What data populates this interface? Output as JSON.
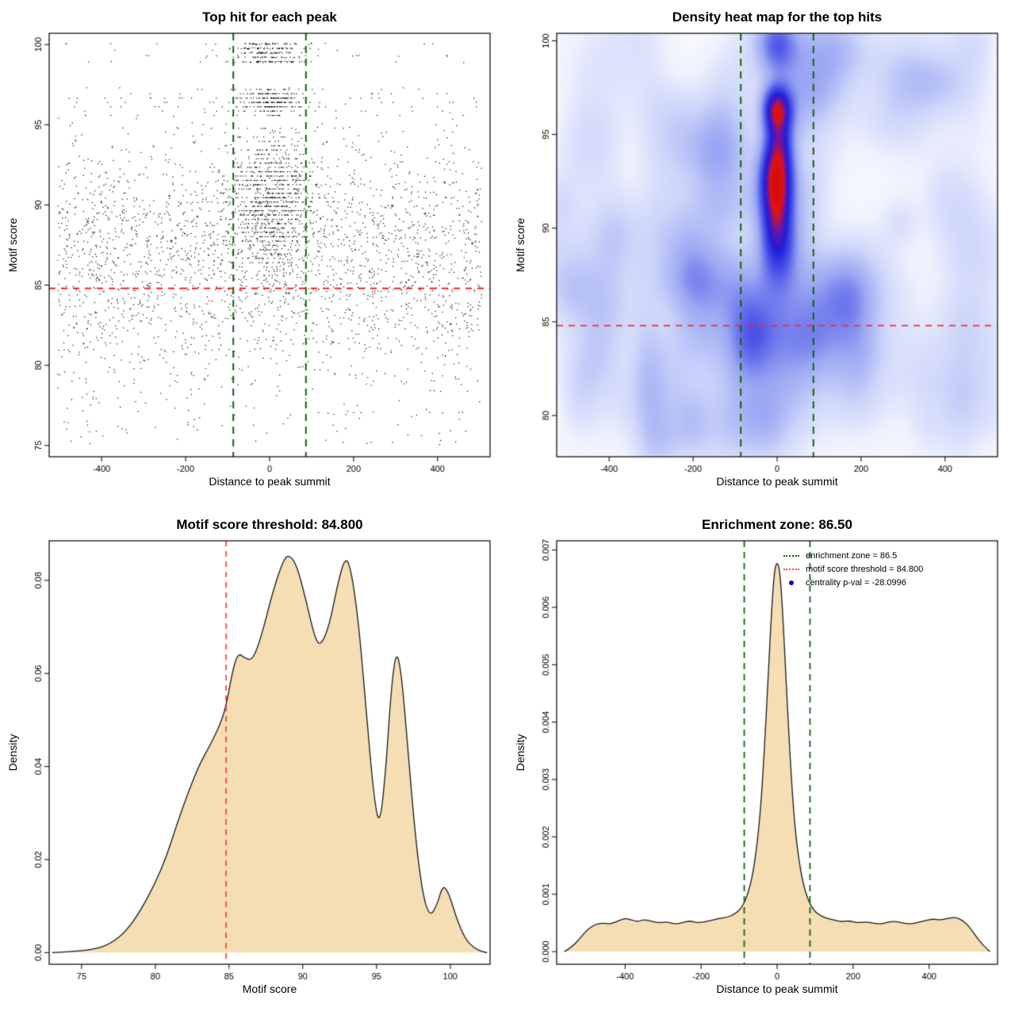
{
  "colors": {
    "density_fill": "#F5DEB3",
    "density_stroke": "#1a1a1a",
    "point_color": "#000000",
    "threshold_red": "#FF0000",
    "zone_green": "#0E640E",
    "legend_blue": "#0000CC"
  },
  "chart_data": [
    {
      "type": "scatter",
      "title": "Top hit for each peak",
      "xlabel": "Distance to peak summit",
      "ylabel": "Motif score",
      "xlim": [
        -525,
        525
      ],
      "ylim": [
        74.3,
        100.7
      ],
      "xticks": {
        "values": [
          -400,
          -200,
          0,
          200,
          400
        ],
        "labels": [
          "-400",
          "-200",
          "0",
          "200",
          "400"
        ]
      },
      "yticks": {
        "values": [
          75,
          80,
          85,
          90,
          95,
          100
        ],
        "labels": [
          "75",
          "80",
          "85",
          "90",
          "95",
          "100"
        ]
      },
      "hline": {
        "y": 84.8,
        "color": "#FF0000",
        "width": 1.8,
        "dash": [
          8,
          7
        ]
      },
      "vlines": {
        "x": [
          -86.5,
          86.5
        ],
        "color": "#0E640E",
        "width": 2,
        "dash": [
          9,
          7
        ]
      },
      "point_size": 1.2,
      "model": {
        "seed": 1337,
        "components": [
          {
            "n": 2500,
            "x": [
              "uniform",
              -505,
              505
            ],
            "y": [
              "normal",
              86.6,
              3.6
            ],
            "yclip": [
              75.2,
              97.3
            ]
          },
          {
            "n": 90,
            "x": [
              "uniform",
              -505,
              505
            ],
            "y": [
              "uniform",
              75.0,
              79.5
            ]
          },
          {
            "n": 850,
            "x": [
              "normal",
              0,
              52
            ],
            "y": [
              "normal",
              90.2,
              2.1
            ],
            "yclip": [
              84.3,
              94.9
            ],
            "quant": 0.27
          },
          {
            "n": 240,
            "x": [
              "normal",
              0,
              38
            ],
            "y": [
              "normal",
              96.45,
              0.42
            ],
            "yclip": [
              95.7,
              97.25
            ],
            "quant": 0.27
          },
          {
            "n": 210,
            "x": [
              "normal",
              0,
              42
            ],
            "y": [
              "bands",
              [
                98.92,
                99.2,
                99.48,
                99.76,
                100.04
              ],
              0.04
            ]
          },
          {
            "n": 36,
            "x": [
              "uniform",
              -495,
              495
            ],
            "y": [
              "bands",
              [
                98.92,
                99.3,
                99.68,
                100.04
              ],
              0.04
            ]
          },
          {
            "n": 90,
            "x": [
              "uniform",
              -495,
              495
            ],
            "y": [
              "normal",
              96.3,
              0.5
            ],
            "yclip": [
              95.5,
              97.2
            ],
            "quant": 0.27
          }
        ]
      }
    },
    {
      "type": "heatmap",
      "title": "Density heat map for the top hits",
      "xlabel": "Distance to peak summit",
      "ylabel": "Motif score",
      "xlim": [
        -525,
        525
      ],
      "ylim": [
        77.8,
        100.4
      ],
      "xticks": {
        "values": [
          -400,
          -200,
          0,
          200,
          400
        ],
        "labels": [
          "-400",
          "-200",
          "0",
          "200",
          "400"
        ]
      },
      "yticks": {
        "values": [
          80,
          85,
          90,
          95,
          100
        ],
        "labels": [
          "80",
          "85",
          "90",
          "95",
          "100"
        ]
      },
      "hline": {
        "y": 84.8,
        "color": "#FF2A2A",
        "width": 1.6,
        "dash": [
          8,
          7
        ]
      },
      "vlines": {
        "x": [
          -86.5,
          86.5
        ],
        "color": "#0E640E",
        "width": 2,
        "dash": [
          9,
          7
        ]
      },
      "kde": {
        "grid": [
          224,
          152
        ],
        "gamma": 0.5,
        "colormap": [
          [
            0,
            "#ffffff"
          ],
          [
            0.2,
            "#eef1fd"
          ],
          [
            0.36,
            "#ced6fa"
          ],
          [
            0.52,
            "#9ba7f2"
          ],
          [
            0.66,
            "#4d55e8"
          ],
          [
            0.78,
            "#1d1dd8"
          ],
          [
            0.86,
            "#6a14aa"
          ],
          [
            0.92,
            "#e01212"
          ],
          [
            1,
            "#d40b0b"
          ]
        ],
        "blobs": [
          {
            "x": 0,
            "y": 96.35,
            "sx": 23,
            "sy": 0.85,
            "w": 1.0
          },
          {
            "x": 0,
            "y": 92.9,
            "sx": 26,
            "sy": 1.35,
            "w": 1.05
          },
          {
            "x": 0,
            "y": 90.8,
            "sx": 25,
            "sy": 1.4,
            "w": 0.5
          },
          {
            "x": 2,
            "y": 89.2,
            "sx": 29,
            "sy": 1.5,
            "w": 0.52
          },
          {
            "x": 0,
            "y": 99.8,
            "sx": 33,
            "sy": 1.15,
            "w": 0.5
          },
          {
            "x": 6,
            "y": 94.7,
            "sx": 21,
            "sy": 0.95,
            "w": 0.4
          },
          {
            "x": 0,
            "y": 86.2,
            "sx": 60,
            "sy": 2.3,
            "w": 0.2
          },
          {
            "x": -30,
            "y": 83.6,
            "sx": 140,
            "sy": 3.0,
            "w": 0.11
          },
          {
            "x": 120,
            "y": 84.0,
            "sx": 120,
            "sy": 3.0,
            "w": 0.1
          }
        ],
        "background_blobs": {
          "seed": 77,
          "n": 120,
          "x": [
            -530,
            530
          ],
          "y": [
            78.2,
            100.8
          ],
          "sx": [
            26,
            64
          ],
          "sy": [
            0.9,
            2.4
          ],
          "w": [
            0.035,
            0.125
          ]
        }
      }
    },
    {
      "type": "density",
      "title": "Motif score threshold: 84.800",
      "xlabel": "Motif score",
      "ylabel": "Density",
      "xlim": [
        72.8,
        102.7
      ],
      "ylim": [
        -0.0025,
        0.0885
      ],
      "xticks": {
        "values": [
          75,
          80,
          85,
          90,
          95,
          100
        ],
        "labels": [
          "75",
          "80",
          "85",
          "90",
          "95",
          "100"
        ]
      },
      "yticks": {
        "values": [
          0,
          0.02,
          0.04,
          0.06,
          0.08
        ],
        "labels": [
          "0.00",
          "0.02",
          "0.04",
          "0.06",
          "0.08"
        ]
      },
      "vline": {
        "x": 84.8,
        "color": "#FF3030",
        "width": 1.6,
        "dash": [
          7,
          6
        ]
      },
      "fill": "#F5DEB3",
      "curve": [
        [
          73,
          0
        ],
        [
          74.5,
          0.0002
        ],
        [
          76,
          0.0008
        ],
        [
          77,
          0.002
        ],
        [
          78,
          0.0045
        ],
        [
          79,
          0.009
        ],
        [
          80,
          0.015
        ],
        [
          80.8,
          0.021
        ],
        [
          81.5,
          0.028
        ],
        [
          82.3,
          0.035
        ],
        [
          83,
          0.0405
        ],
        [
          83.7,
          0.0445
        ],
        [
          84.4,
          0.049
        ],
        [
          84.8,
          0.053
        ],
        [
          85.2,
          0.06
        ],
        [
          85.6,
          0.0645
        ],
        [
          86.1,
          0.0632
        ],
        [
          86.6,
          0.0628
        ],
        [
          87.2,
          0.068
        ],
        [
          88,
          0.078
        ],
        [
          88.7,
          0.0845
        ],
        [
          89.1,
          0.0855
        ],
        [
          89.6,
          0.0832
        ],
        [
          90.2,
          0.076
        ],
        [
          90.8,
          0.0678
        ],
        [
          91.2,
          0.0658
        ],
        [
          91.8,
          0.0702
        ],
        [
          92.4,
          0.0798
        ],
        [
          92.9,
          0.0852
        ],
        [
          93.3,
          0.082
        ],
        [
          93.8,
          0.0705
        ],
        [
          94.3,
          0.052
        ],
        [
          94.8,
          0.034
        ],
        [
          95.2,
          0.0268
        ],
        [
          95.6,
          0.038
        ],
        [
          96,
          0.057
        ],
        [
          96.35,
          0.0652
        ],
        [
          96.7,
          0.0598
        ],
        [
          97.1,
          0.0448
        ],
        [
          97.6,
          0.026
        ],
        [
          98.1,
          0.013
        ],
        [
          98.6,
          0.0076
        ],
        [
          99.1,
          0.0102
        ],
        [
          99.5,
          0.0146
        ],
        [
          99.9,
          0.0128
        ],
        [
          100.4,
          0.0076
        ],
        [
          101,
          0.003
        ],
        [
          101.6,
          0.001
        ],
        [
          102.2,
          0.0002
        ],
        [
          102.5,
          0
        ]
      ]
    },
    {
      "type": "density",
      "title": "Enrichment zone: 86.50",
      "xlabel": "Distance to peak summit",
      "ylabel": "Density",
      "xlim": [
        -580,
        580
      ],
      "ylim": [
        -0.00022,
        0.00716
      ],
      "xticks": {
        "values": [
          -400,
          -200,
          0,
          200,
          400
        ],
        "labels": [
          "-400",
          "-200",
          "0",
          "200",
          "400"
        ]
      },
      "yticks": {
        "values": [
          0,
          0.001,
          0.002,
          0.003,
          0.004,
          0.005,
          0.006,
          0.007
        ],
        "labels": [
          "0.000",
          "0.001",
          "0.002",
          "0.003",
          "0.004",
          "0.005",
          "0.006",
          "0.007"
        ]
      },
      "vlines": {
        "x": [
          -86.5,
          86.5
        ],
        "color": "#0E640E",
        "width": 1.8,
        "dash": [
          8,
          6
        ]
      },
      "fill": "#F5DEB3",
      "curve": [
        [
          -560,
          0
        ],
        [
          -540,
          8e-05
        ],
        [
          -520,
          0.00022
        ],
        [
          -500,
          0.00038
        ],
        [
          -480,
          0.00047
        ],
        [
          -460,
          0.0005
        ],
        [
          -440,
          0.00048
        ],
        [
          -420,
          0.00053
        ],
        [
          -400,
          0.00058
        ],
        [
          -385,
          0.00056
        ],
        [
          -368,
          0.00052
        ],
        [
          -350,
          0.00056
        ],
        [
          -330,
          0.00053
        ],
        [
          -310,
          0.0005
        ],
        [
          -290,
          0.00052
        ],
        [
          -270,
          0.00048
        ],
        [
          -250,
          0.0005
        ],
        [
          -230,
          0.00054
        ],
        [
          -210,
          0.0005
        ],
        [
          -190,
          0.00052
        ],
        [
          -170,
          0.00055
        ],
        [
          -150,
          0.00058
        ],
        [
          -130,
          0.0006
        ],
        [
          -110,
          0.00066
        ],
        [
          -95,
          0.00075
        ],
        [
          -80,
          0.00094
        ],
        [
          -65,
          0.0013
        ],
        [
          -52,
          0.0019
        ],
        [
          -42,
          0.0026
        ],
        [
          -32,
          0.0037
        ],
        [
          -22,
          0.005
        ],
        [
          -14,
          0.006
        ],
        [
          -7,
          0.00665
        ],
        [
          0,
          0.0068
        ],
        [
          7,
          0.00665
        ],
        [
          14,
          0.006
        ],
        [
          22,
          0.00495
        ],
        [
          32,
          0.00365
        ],
        [
          42,
          0.00255
        ],
        [
          52,
          0.00185
        ],
        [
          65,
          0.00128
        ],
        [
          80,
          0.00092
        ],
        [
          95,
          0.00073
        ],
        [
          110,
          0.00064
        ],
        [
          130,
          0.00058
        ],
        [
          150,
          0.00055
        ],
        [
          170,
          0.00052
        ],
        [
          190,
          0.00054
        ],
        [
          210,
          0.0005
        ],
        [
          230,
          0.00052
        ],
        [
          250,
          0.0005
        ],
        [
          270,
          0.00048
        ],
        [
          290,
          0.00051
        ],
        [
          310,
          0.00053
        ],
        [
          330,
          0.0005
        ],
        [
          350,
          0.00048
        ],
        [
          370,
          0.00051
        ],
        [
          390,
          0.00054
        ],
        [
          410,
          0.00057
        ],
        [
          430,
          0.00055
        ],
        [
          450,
          0.00058
        ],
        [
          470,
          0.0006
        ],
        [
          490,
          0.00054
        ],
        [
          510,
          0.0004
        ],
        [
          530,
          0.0002
        ],
        [
          550,
          6e-05
        ],
        [
          560,
          0
        ]
      ],
      "legend": {
        "items": [
          {
            "label": "enrichment zone = 86.5",
            "marker": "dotted-line",
            "color": "#0E640E"
          },
          {
            "label": "motif score threshold = 84.800",
            "marker": "dotted-line",
            "color": "#FF4444"
          },
          {
            "label": "centrality p-val = -28.0996",
            "marker": "dot",
            "color": "#0000CC"
          }
        ]
      }
    }
  ]
}
